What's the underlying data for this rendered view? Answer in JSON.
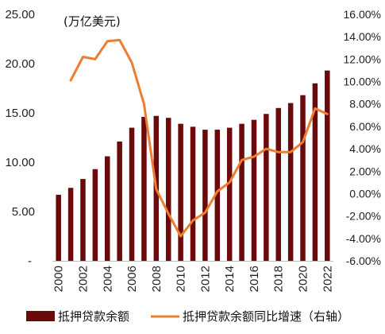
{
  "chart_data": {
    "type": "bar+line",
    "unit_label": "(万亿美元)",
    "categories": [
      "2000",
      "2001",
      "2002",
      "2003",
      "2004",
      "2005",
      "2006",
      "2007",
      "2008",
      "2009",
      "2010",
      "2011",
      "2012",
      "2013",
      "2014",
      "2015",
      "2016",
      "2017",
      "2018",
      "2019",
      "2020",
      "2021",
      "2022"
    ],
    "x_tick_labels": [
      "2000",
      "2002",
      "2004",
      "2006",
      "2008",
      "2010",
      "2012",
      "2014",
      "2016",
      "2018",
      "2020",
      "2022"
    ],
    "y_left": {
      "ticks": [
        "-",
        "5.00",
        "10.00",
        "15.00",
        "20.00",
        "25.00"
      ],
      "range": [
        0,
        25
      ]
    },
    "y_right": {
      "ticks": [
        "-6.00%",
        "-4.00%",
        "-2.00%",
        "0.00%",
        "2.00%",
        "4.00%",
        "6.00%",
        "8.00%",
        "10.00%",
        "12.00%",
        "14.00%",
        "16.00%"
      ],
      "range": [
        -6,
        16
      ]
    },
    "series": [
      {
        "name": "抵押贷款余额",
        "type": "bar",
        "axis": "left",
        "color": "#6b0a0a",
        "values": [
          6.7,
          7.4,
          8.3,
          9.3,
          10.6,
          12.1,
          13.5,
          14.6,
          14.7,
          14.5,
          13.9,
          13.6,
          13.3,
          13.3,
          13.5,
          13.9,
          14.3,
          14.9,
          15.5,
          16.0,
          16.8,
          18.0,
          19.3
        ]
      },
      {
        "name": "抵押贷款余额同比增速（右轴）",
        "type": "line",
        "axis": "right",
        "color": "#ed7d31",
        "values": [
          null,
          10.1,
          12.2,
          12.0,
          13.6,
          13.7,
          11.7,
          8.0,
          0.4,
          -1.8,
          -3.8,
          -2.4,
          -1.7,
          0.2,
          1.0,
          3.0,
          3.3,
          4.0,
          3.7,
          3.7,
          4.6,
          7.6,
          7.1
        ]
      }
    ],
    "legend_position": "bottom"
  }
}
